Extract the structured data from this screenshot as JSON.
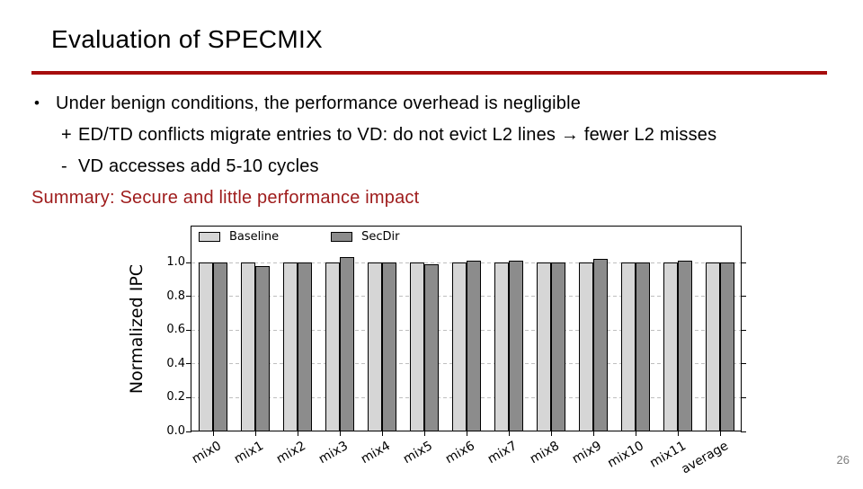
{
  "slide": {
    "title": "Evaluation of SPECMIX",
    "accent_rule_color": "#a60d0d",
    "bullets": [
      {
        "marker": "•",
        "text": "Under benign conditions, the performance overhead is negligible"
      },
      {
        "marker": "+",
        "text": "ED/TD conflicts migrate entries to VD: do not evict L2 lines → fewer L2 misses"
      },
      {
        "marker": "-",
        "text": "VD accesses add 5-10 cycles"
      }
    ],
    "summary": "Summary: Secure and little performance impact",
    "summary_color": "#9e1b1b",
    "page_number": "26"
  },
  "chart_data": {
    "type": "bar",
    "title": "",
    "xlabel": "",
    "ylabel": "Normalized IPC",
    "categories": [
      "mix0",
      "mix1",
      "mix2",
      "mix3",
      "mix4",
      "mix5",
      "mix6",
      "mix7",
      "mix8",
      "mix9",
      "mix10",
      "mix11",
      "average"
    ],
    "series": [
      {
        "name": "Baseline",
        "color": "#d6d6d6",
        "values": [
          1.0,
          1.0,
          1.0,
          1.0,
          1.0,
          1.0,
          1.0,
          1.0,
          1.0,
          1.0,
          1.0,
          1.0,
          1.0
        ]
      },
      {
        "name": "SecDir",
        "color": "#8c8c8c",
        "values": [
          1.0,
          0.98,
          1.0,
          1.03,
          1.0,
          0.99,
          1.01,
          1.01,
          1.0,
          1.02,
          1.0,
          1.01,
          1.0
        ]
      }
    ],
    "yticks": [
      0.0,
      0.2,
      0.4,
      0.6,
      0.8,
      1.0
    ],
    "ylim": [
      0.0,
      1.21
    ],
    "grid": "horizontal-dashed",
    "grid_color": "#bfbfbf",
    "bar_edge_color": "#000000",
    "legend_position": "top-left-inside"
  }
}
